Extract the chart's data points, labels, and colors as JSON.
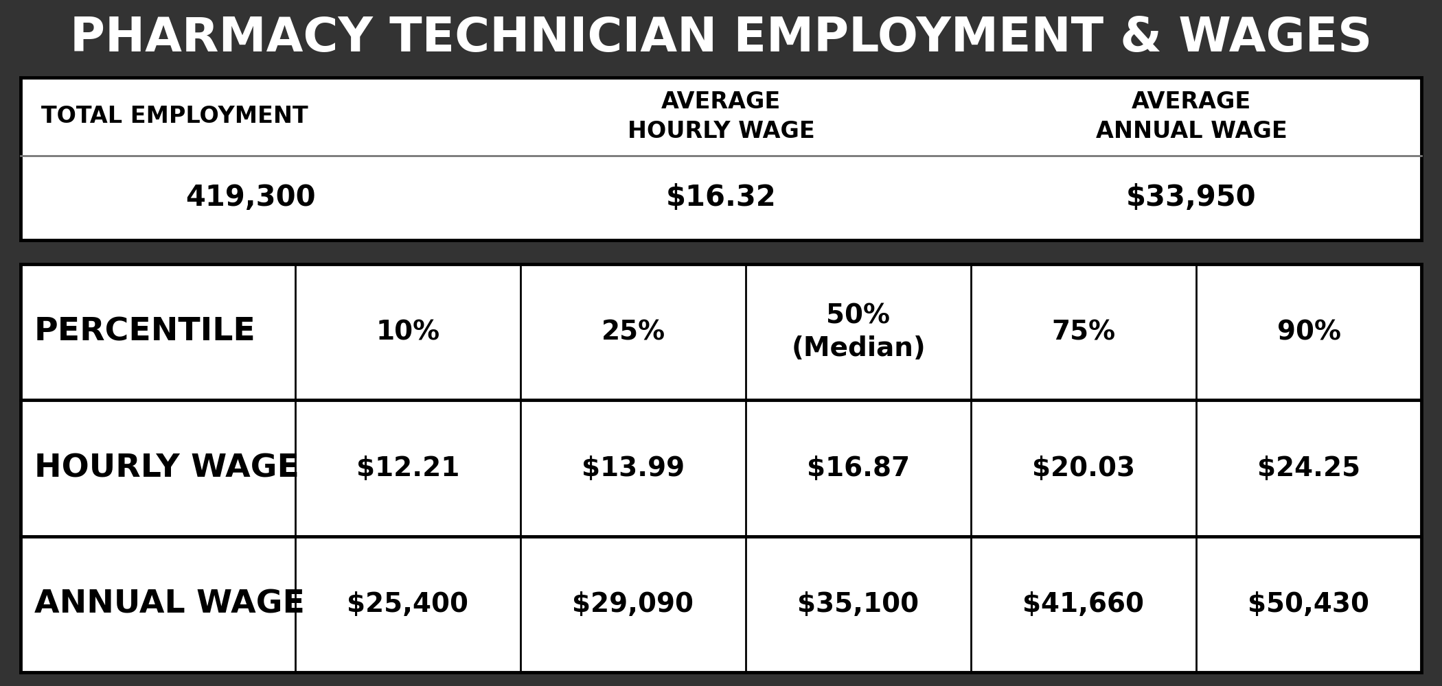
{
  "title": "PHARMACY TECHNICIAN EMPLOYMENT & WAGES",
  "title_bg": "#333333",
  "title_color": "#ffffff",
  "title_fontsize": 50,
  "cell_bg": "#ffffff",
  "dark_bg": "#333333",
  "text_color": "#000000",
  "summary_headers": [
    "TOTAL EMPLOYMENT",
    "AVERAGE\nHOURLY WAGE",
    "AVERAGE\nANNUAL WAGE"
  ],
  "summary_values": [
    "419,300",
    "$16.32",
    "$33,950"
  ],
  "percentile_labels": [
    "10%",
    "25%",
    "50%\n(Median)",
    "75%",
    "90%"
  ],
  "hourly_wages": [
    "$12.21",
    "$13.99",
    "$16.87",
    "$20.03",
    "$24.25"
  ],
  "annual_wages": [
    "$25,400",
    "$29,090",
    "$35,100",
    "$41,660",
    "$50,430"
  ],
  "row_labels": [
    "PERCENTILE",
    "HOURLY WAGE",
    "ANNUAL WAGE"
  ]
}
